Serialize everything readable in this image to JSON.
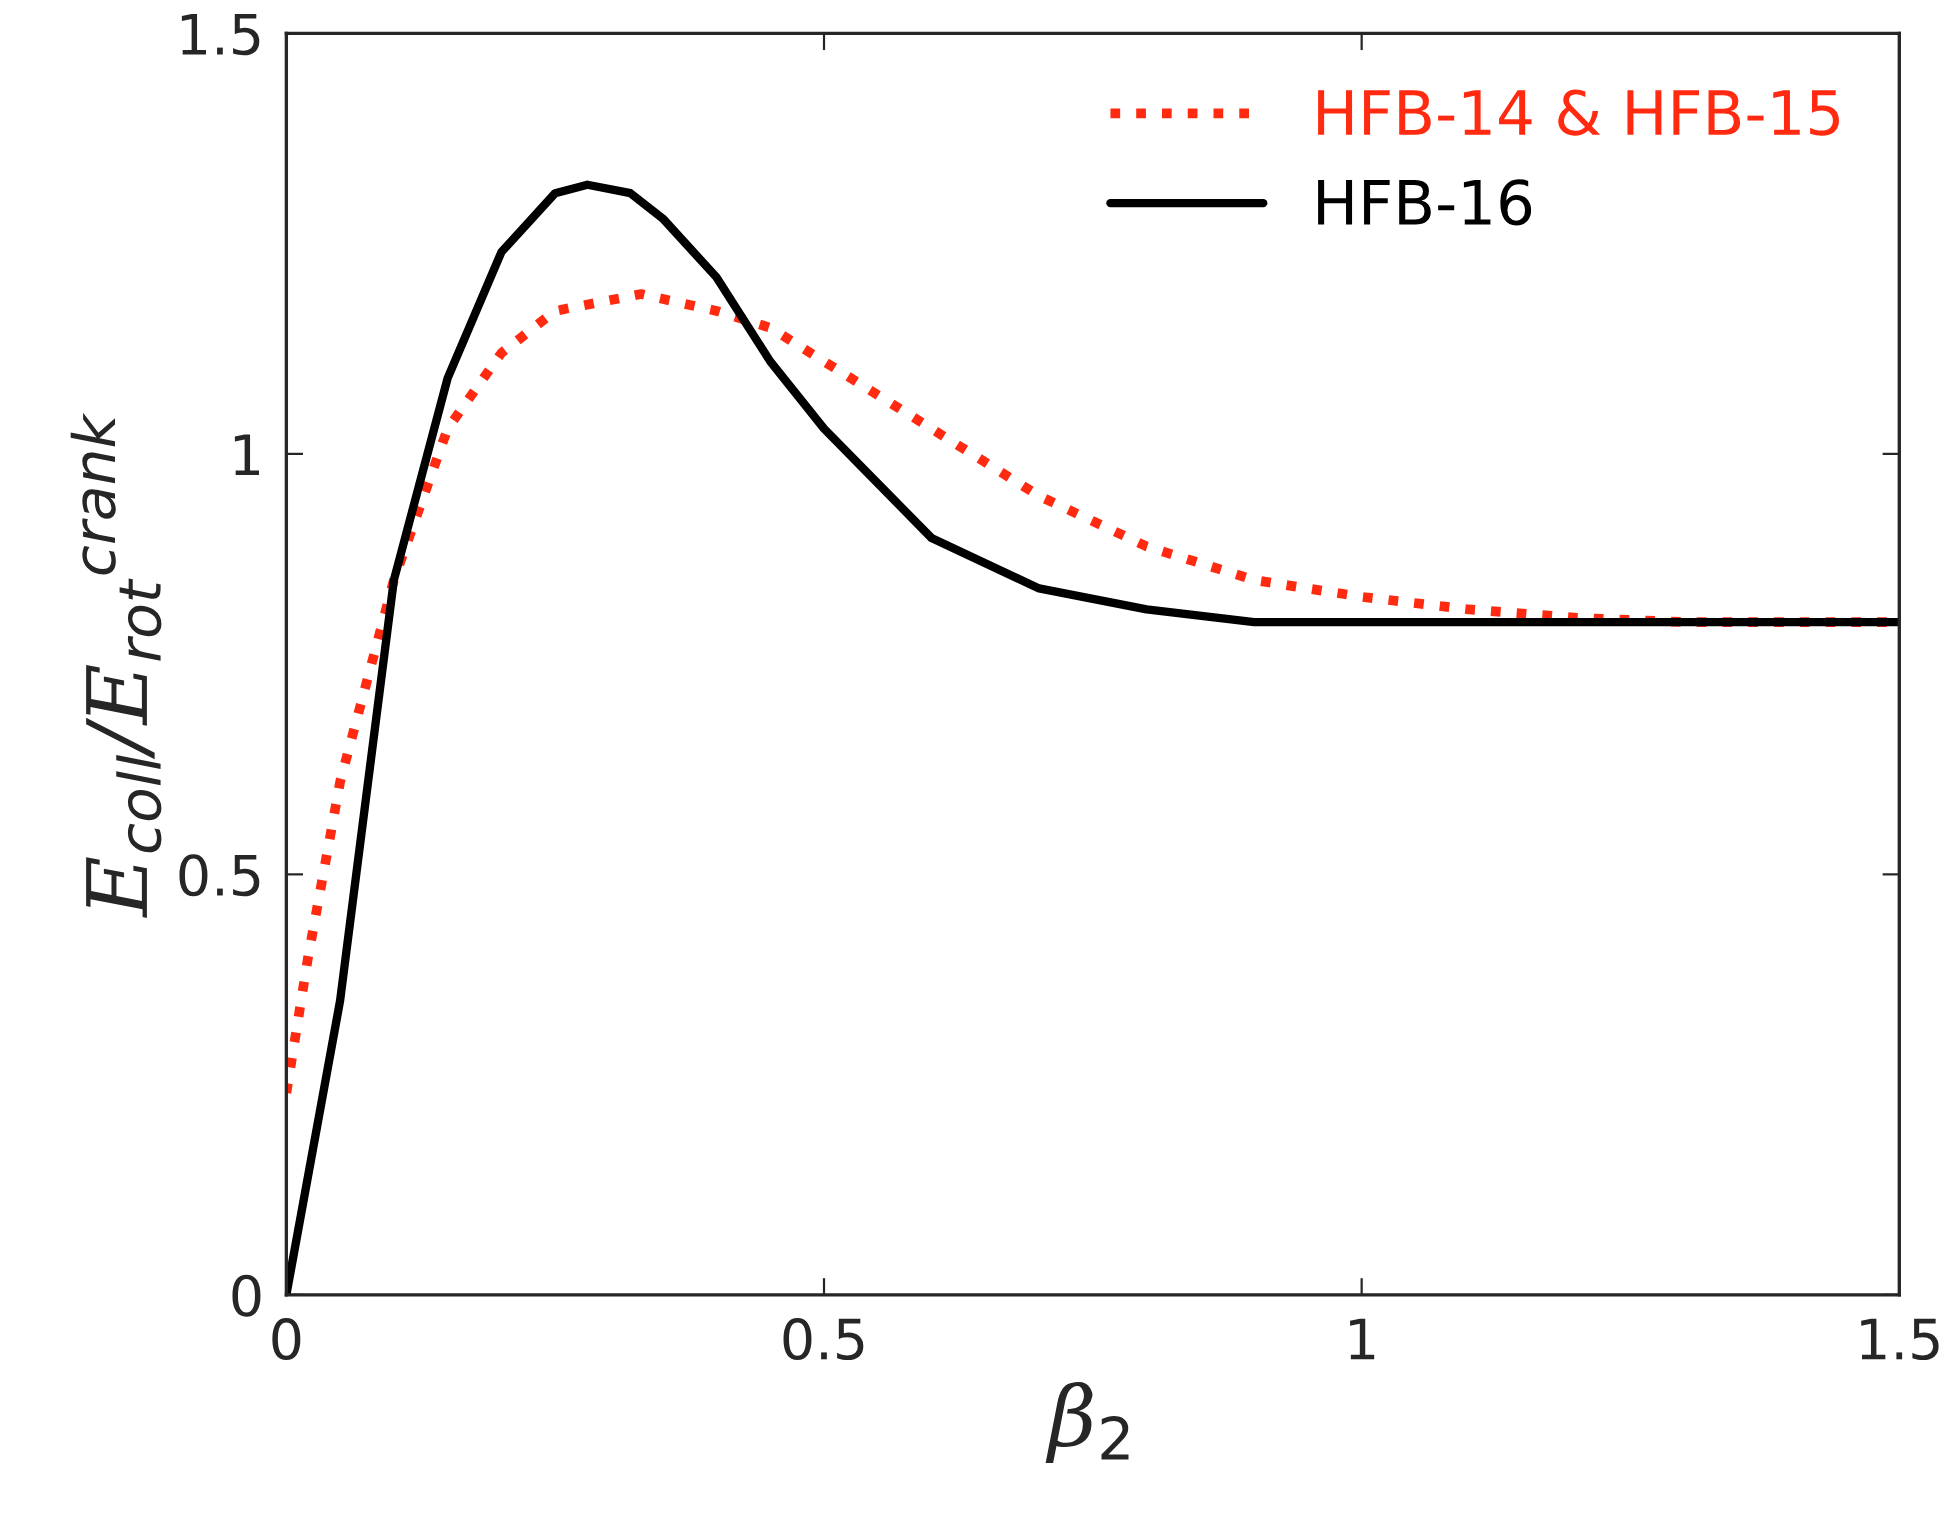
{
  "chart_data": {
    "type": "line",
    "xlabel": "β$_{2}$",
    "ylabel": "E$_{coll}$/E$_{rot}$$^{crank}$",
    "xlim": [
      0,
      1.5
    ],
    "ylim": [
      0,
      1.5
    ],
    "xticks": [
      0,
      0.5,
      1,
      1.5
    ],
    "yticks": [
      0,
      0.5,
      1,
      1.5
    ],
    "grid": false,
    "legend": "top right",
    "series": [
      {
        "name": "HFB-14 & HFB-15",
        "color": "#ff2a10",
        "line_style": "dotted",
        "x": [
          0,
          0.02,
          0.05,
          0.1,
          0.15,
          0.2,
          0.25,
          0.33,
          0.4,
          0.45,
          0.5,
          0.6,
          0.7,
          0.8,
          0.9,
          1.0,
          1.1,
          1.2,
          1.3,
          1.5
        ],
        "values": [
          0.24,
          0.4,
          0.61,
          0.85,
          1.03,
          1.12,
          1.17,
          1.19,
          1.17,
          1.15,
          1.11,
          1.03,
          0.95,
          0.89,
          0.85,
          0.83,
          0.815,
          0.805,
          0.8,
          0.8
        ]
      },
      {
        "name": "HFB-16",
        "color": "#000000",
        "line_style": "solid",
        "x": [
          0,
          0.05,
          0.1,
          0.15,
          0.2,
          0.25,
          0.28,
          0.32,
          0.35,
          0.4,
          0.45,
          0.5,
          0.6,
          0.7,
          0.8,
          0.9,
          1.0,
          1.5
        ],
        "values": [
          0,
          0.35,
          0.85,
          1.09,
          1.24,
          1.31,
          1.32,
          1.31,
          1.28,
          1.21,
          1.11,
          1.03,
          0.9,
          0.84,
          0.815,
          0.8,
          0.8,
          0.8
        ]
      }
    ]
  }
}
